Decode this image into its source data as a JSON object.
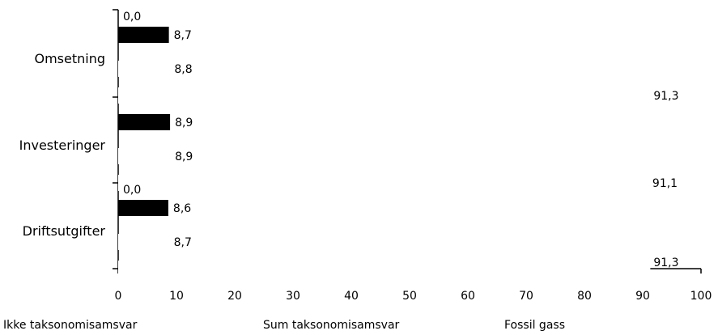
{
  "chart_data": {
    "type": "bar",
    "orientation": "horizontal",
    "categories": [
      "Omsetning",
      "Investeringer",
      "Driftsutgifter"
    ],
    "series": [
      {
        "name": "Fossil gass",
        "values": [
          0.0,
          null,
          0.0
        ],
        "labels": [
          "0,0",
          "",
          "0,0"
        ],
        "color": "#ffffff"
      },
      {
        "name": "Sum taksonomisamsvar",
        "values": [
          8.7,
          8.9,
          8.6
        ],
        "labels": [
          "8,7",
          "8,9",
          "8,6"
        ],
        "color": "#000000"
      },
      {
        "name": "",
        "values": [
          8.8,
          8.9,
          8.7
        ],
        "labels": [
          "8,8",
          "8,9",
          "8,7"
        ],
        "color": "#ffffff"
      },
      {
        "name": "Ikke taksonomisamsvar",
        "values": [
          91.3,
          91.1,
          91.3
        ],
        "labels": [
          "91,3",
          "91,1",
          "91,3"
        ],
        "color": "#ffffff"
      }
    ],
    "xlim": [
      0,
      100
    ],
    "xticks": [
      "0",
      "10",
      "20",
      "30",
      "40",
      "50",
      "60",
      "70",
      "80",
      "90",
      "100"
    ],
    "legend": [
      "Ikke taksonomisamsvar",
      "Sum taksonomisamsvar",
      "Fossil gass"
    ],
    "legend_position": "bottom",
    "grid": false,
    "title": "",
    "xlabel": "",
    "ylabel": ""
  }
}
